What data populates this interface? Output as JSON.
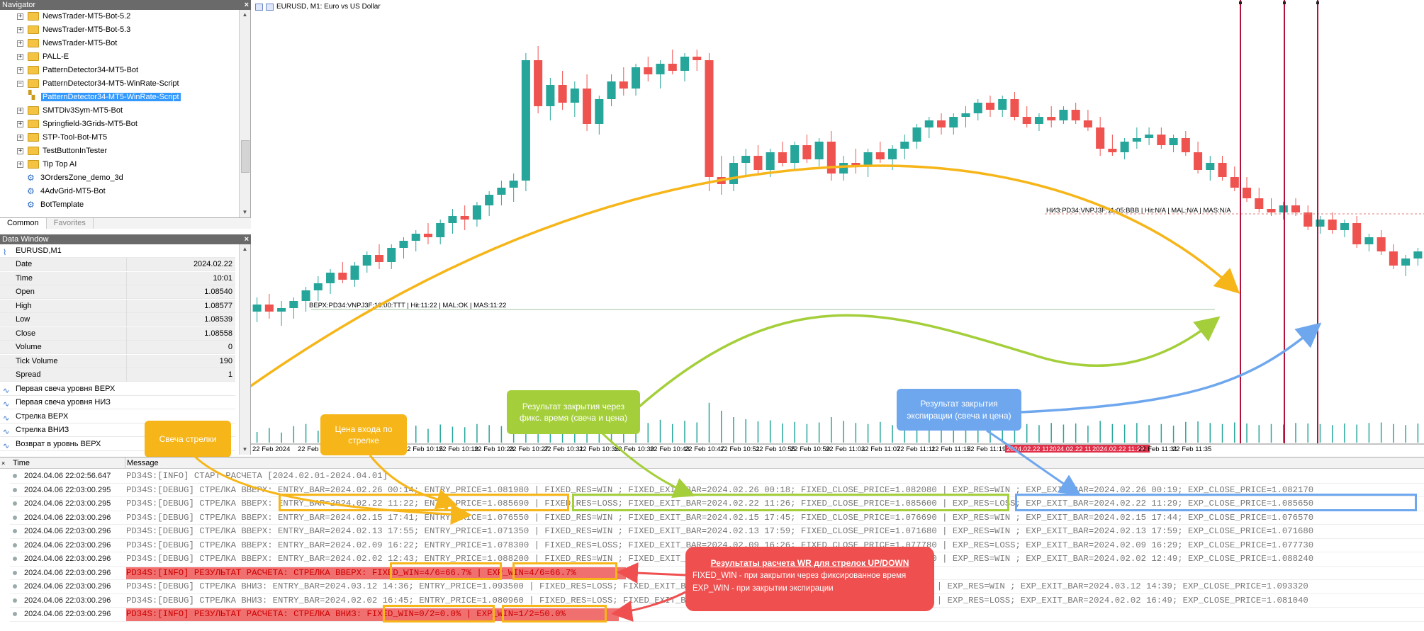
{
  "navigator": {
    "title": "Navigator",
    "items": [
      {
        "label": "NewsTrader-MT5-Bot-5.2",
        "kind": "folder"
      },
      {
        "label": "NewsTrader-MT5-Bot-5.3",
        "kind": "folder"
      },
      {
        "label": "NewsTrader-MT5-Bot",
        "kind": "folder"
      },
      {
        "label": "PALL-E",
        "kind": "folder"
      },
      {
        "label": "PatternDetector34-MT5-Bot",
        "kind": "folder"
      },
      {
        "label": "PatternDetector34-MT5-WinRate-Script",
        "kind": "folder-open"
      },
      {
        "label": "PatternDetector34-MT5-WinRate-Script",
        "kind": "selected"
      },
      {
        "label": "SMTDiv3Sym-MT5-Bot",
        "kind": "folder"
      },
      {
        "label": "Springfield-3Grids-MT5-Bot",
        "kind": "folder"
      },
      {
        "label": "STP-Tool-Bot-MT5",
        "kind": "folder"
      },
      {
        "label": "TestButtonInTester",
        "kind": "folder"
      },
      {
        "label": "Tip Top AI",
        "kind": "folder"
      },
      {
        "label": "3OrdersZone_demo_3d",
        "kind": "script"
      },
      {
        "label": "4AdvGrid-MT5-Bot",
        "kind": "script"
      },
      {
        "label": "BotTemplate",
        "kind": "script"
      }
    ],
    "tabs": [
      "Common",
      "Favorites"
    ]
  },
  "data_window": {
    "title": "Data Window",
    "symbol": "EURUSD,M1",
    "rows": [
      {
        "k": "Date",
        "v": "2024.02.22"
      },
      {
        "k": "Time",
        "v": "10:01"
      },
      {
        "k": "Open",
        "v": "1.08540"
      },
      {
        "k": "High",
        "v": "1.08577"
      },
      {
        "k": "Low",
        "v": "1.08539"
      },
      {
        "k": "Close",
        "v": "1.08558"
      },
      {
        "k": "Volume",
        "v": "0"
      },
      {
        "k": "Tick Volume",
        "v": "190"
      },
      {
        "k": "Spread",
        "v": "1"
      }
    ],
    "indicators": [
      "Первая свеча уровня ВЕРХ",
      "Первая свеча уровня НИЗ",
      "Стрелка ВЕРХ",
      "Стрелка ВНИЗ",
      "Возврат в уровнь ВЕРХ"
    ]
  },
  "chart": {
    "title": "EURUSD, M1:  Euro vs US Dollar",
    "upper_label": "ВЕРХ:PD34:VNPJ3F:10:00:TTT | Hit:11:22 | MAL:OK | MAS:11:22",
    "lower_label": "НИЗ:PD34:VNPJ3F:11:05:BBB | Hit:N/A | MAL:N/A | MAS:N/A",
    "time_labels": [
      "22 Feb 2024",
      "22 Feb 10:03",
      "22 Feb 10:07",
      "22 Feb 10:11",
      "22 Feb 10:15",
      "22 Feb 10:19",
      "22 Feb 10:23",
      "22 Feb 10:27",
      "22 Feb 10:31",
      "22 Feb 10:35",
      "22 Feb 10:39",
      "22 Feb 10:43",
      "22 Feb 10:47",
      "22 Feb 10:51",
      "22 Feb 10:55",
      "22 Feb 10:59",
      "22 Feb 11:03",
      "22 Feb 11:07",
      "22 Feb 11:11",
      "22 Feb 11:15",
      "22 Feb 11:19",
      "2024.02.22 11:22",
      "2024.02.22 11:26",
      "2024.02.22 11:29",
      "22 Feb 11:31",
      "22 Feb 11:35"
    ],
    "colors": {
      "bull": "#26a69a",
      "bear": "#ef5350",
      "vline": "#b0123a"
    },
    "candles": [
      [
        1.0822,
        1.0826,
        1.0819,
        1.0824
      ],
      [
        1.0824,
        1.0827,
        1.082,
        1.0822
      ],
      [
        1.0822,
        1.0825,
        1.0818,
        1.0823
      ],
      [
        1.0823,
        1.0826,
        1.082,
        1.0825
      ],
      [
        1.0825,
        1.0829,
        1.0822,
        1.0828
      ],
      [
        1.0828,
        1.0832,
        1.0825,
        1.083
      ],
      [
        1.083,
        1.0834,
        1.0827,
        1.0833
      ],
      [
        1.0833,
        1.0836,
        1.083,
        1.0831
      ],
      [
        1.0831,
        1.0836,
        1.0829,
        1.0835
      ],
      [
        1.0835,
        1.0839,
        1.0833,
        1.0838
      ],
      [
        1.0838,
        1.0841,
        1.0834,
        1.0836
      ],
      [
        1.0836,
        1.0841,
        1.0834,
        1.084
      ],
      [
        1.084,
        1.0843,
        1.0837,
        1.0842
      ],
      [
        1.0842,
        1.0845,
        1.0839,
        1.0844
      ],
      [
        1.0844,
        1.0847,
        1.0841,
        1.0843
      ],
      [
        1.0843,
        1.0848,
        1.0841,
        1.0847
      ],
      [
        1.0847,
        1.0851,
        1.0844,
        1.0849
      ],
      [
        1.0849,
        1.0852,
        1.0845,
        1.0848
      ],
      [
        1.0848,
        1.0853,
        1.0846,
        1.0852
      ],
      [
        1.0852,
        1.0856,
        1.0849,
        1.0855
      ],
      [
        1.0855,
        1.0859,
        1.0852,
        1.0857
      ],
      [
        1.0857,
        1.0861,
        1.0853,
        1.0859
      ],
      [
        1.0859,
        1.0895,
        1.0856,
        1.0893
      ],
      [
        1.0893,
        1.0897,
        1.0878,
        1.088
      ],
      [
        1.088,
        1.0888,
        1.0876,
        1.0886
      ],
      [
        1.0886,
        1.089,
        1.0879,
        1.0881
      ],
      [
        1.0881,
        1.0887,
        1.0877,
        1.0885
      ],
      [
        1.0885,
        1.0889,
        1.0873,
        1.0875
      ],
      [
        1.0875,
        1.0883,
        1.0872,
        1.0882
      ],
      [
        1.0882,
        1.0889,
        1.088,
        1.0887
      ],
      [
        1.0887,
        1.0891,
        1.0883,
        1.0885
      ],
      [
        1.0885,
        1.0892,
        1.0883,
        1.0891
      ],
      [
        1.0891,
        1.0894,
        1.0887,
        1.0889
      ],
      [
        1.0889,
        1.0893,
        1.0885,
        1.0892
      ],
      [
        1.0892,
        1.0896,
        1.0889,
        1.089
      ],
      [
        1.089,
        1.0895,
        1.0887,
        1.0894
      ],
      [
        1.0894,
        1.0896,
        1.089,
        1.0893
      ],
      [
        1.0893,
        1.0895,
        1.0856,
        1.086
      ],
      [
        1.086,
        1.0866,
        1.0855,
        1.0858
      ],
      [
        1.0858,
        1.0866,
        1.0856,
        1.0864
      ],
      [
        1.0864,
        1.0868,
        1.086,
        1.0866
      ],
      [
        1.0866,
        1.0869,
        1.0861,
        1.0862
      ],
      [
        1.0862,
        1.0868,
        1.086,
        1.0867
      ],
      [
        1.0867,
        1.087,
        1.0863,
        1.0864
      ],
      [
        1.0864,
        1.087,
        1.0862,
        1.0869
      ],
      [
        1.0869,
        1.0872,
        1.0864,
        1.0865
      ],
      [
        1.0865,
        1.0871,
        1.0863,
        1.087
      ],
      [
        1.087,
        1.0873,
        1.0859,
        1.0861
      ],
      [
        1.0861,
        1.0866,
        1.0859,
        1.0864
      ],
      [
        1.0864,
        1.0868,
        1.0861,
        1.0863
      ],
      [
        1.0863,
        1.0868,
        1.086,
        1.0867
      ],
      [
        1.0867,
        1.087,
        1.0864,
        1.0865
      ],
      [
        1.0865,
        1.0869,
        1.0862,
        1.0868
      ],
      [
        1.0868,
        1.0872,
        1.0865,
        1.087
      ],
      [
        1.087,
        1.0875,
        1.0868,
        1.0874
      ],
      [
        1.0874,
        1.0877,
        1.0871,
        1.0876
      ],
      [
        1.0876,
        1.0878,
        1.0872,
        1.0874
      ],
      [
        1.0874,
        1.0878,
        1.0872,
        1.0877
      ],
      [
        1.0877,
        1.088,
        1.0874,
        1.0878
      ],
      [
        1.0878,
        1.0882,
        1.0876,
        1.0881
      ],
      [
        1.0881,
        1.0883,
        1.0877,
        1.0879
      ],
      [
        1.0879,
        1.0883,
        1.0877,
        1.0882
      ],
      [
        1.0882,
        1.0884,
        1.0876,
        1.0877
      ],
      [
        1.0877,
        1.088,
        1.0874,
        1.0875
      ],
      [
        1.0875,
        1.0878,
        1.0873,
        1.0877
      ],
      [
        1.0877,
        1.088,
        1.0874,
        1.0876
      ],
      [
        1.0876,
        1.088,
        1.0875,
        1.0879
      ],
      [
        1.0879,
        1.0881,
        1.0875,
        1.0876
      ],
      [
        1.0876,
        1.0879,
        1.0873,
        1.0874
      ],
      [
        1.0874,
        1.0877,
        1.0866,
        1.0868
      ],
      [
        1.0868,
        1.0872,
        1.0866,
        1.0867
      ],
      [
        1.0867,
        1.0871,
        1.0865,
        1.087
      ],
      [
        1.087,
        1.0874,
        1.0868,
        1.0871
      ],
      [
        1.0871,
        1.0874,
        1.0869,
        1.0872
      ],
      [
        1.0872,
        1.0874,
        1.0868,
        1.0869
      ],
      [
        1.0869,
        1.0872,
        1.0867,
        1.0871
      ],
      [
        1.0871,
        1.0873,
        1.0866,
        1.0867
      ],
      [
        1.0867,
        1.087,
        1.0861,
        1.0862
      ],
      [
        1.0862,
        1.0866,
        1.0859,
        1.0864
      ],
      [
        1.0864,
        1.0866,
        1.0859,
        1.086
      ],
      [
        1.086,
        1.0863,
        1.0856,
        1.0857
      ],
      [
        1.0857,
        1.086,
        1.0853,
        1.0854
      ],
      [
        1.0854,
        1.0857,
        1.085,
        1.0851
      ],
      [
        1.0851,
        1.0854,
        1.0849,
        1.085
      ],
      [
        1.085,
        1.0853,
        1.0848,
        1.0852
      ],
      [
        1.0852,
        1.0854,
        1.0849,
        1.085
      ],
      [
        1.085,
        1.0852,
        1.0845,
        1.0846
      ],
      [
        1.0846,
        1.0849,
        1.0844,
        1.0848
      ],
      [
        1.0848,
        1.085,
        1.0844,
        1.0845
      ],
      [
        1.0845,
        1.0848,
        1.0843,
        1.0847
      ],
      [
        1.0847,
        1.0849,
        1.084,
        1.0841
      ],
      [
        1.0841,
        1.0844,
        1.0839,
        1.0843
      ],
      [
        1.0843,
        1.0845,
        1.0838,
        1.0839
      ],
      [
        1.0839,
        1.0841,
        1.0834,
        1.0835
      ],
      [
        1.0835,
        1.0838,
        1.0832,
        1.0837
      ],
      [
        1.0837,
        1.084,
        1.0835,
        1.0839
      ]
    ],
    "price_range": [
      1.081,
      1.0908
    ],
    "volumes": [
      40,
      55,
      38,
      62,
      70,
      45,
      58,
      66,
      50,
      72,
      48,
      60,
      55,
      64,
      52,
      68,
      60,
      58,
      70,
      66,
      62,
      75,
      160,
      120,
      95,
      88,
      76,
      110,
      92,
      84,
      78,
      90,
      74,
      86,
      70,
      82,
      76,
      150,
      120,
      96,
      88,
      80,
      84,
      72,
      78,
      70,
      76,
      96,
      82,
      74,
      70,
      78,
      66,
      72,
      64,
      80,
      70,
      66,
      74,
      68,
      62,
      72,
      76,
      70,
      66,
      74,
      68,
      72,
      64,
      82,
      70,
      68,
      74,
      66,
      70,
      64,
      78,
      80,
      74,
      70,
      76,
      72,
      66,
      70,
      68,
      74,
      72,
      70,
      66,
      72,
      68,
      74,
      76,
      70,
      66,
      72
    ],
    "callout_arrow": "Свеча стрелки",
    "callout_entry": "Цена входа по стрелке",
    "callout_fixed": "Результат закрытия через фикс. время (свеча и цена)",
    "callout_exp": "Результат закрытия экспирации (свеча и цена)"
  },
  "journal": {
    "col_time": "Time",
    "col_message": "Message",
    "rows": [
      {
        "t": "2024.04.06 22:02:56.647",
        "m": "PD34S:[INFO] СТАРТ РАСЧЕТА [2024.02.01-2024.04.01]",
        "hl": false
      },
      {
        "t": "2024.04.06 22:03:00.295",
        "m": "PD34S:[DEBUG] СТРЕЛКА ВВЕРХ: ENTRY_BAR=2024.02.26 00:14; ENTRY_PRICE=1.081980 | FIXED_RES=WIN ; FIXED_EXIT_BAR=2024.02.26 00:18; FIXED_CLOSE_PRICE=1.082080 | EXP_RES=WIN ; EXP_EXIT_BAR=2024.02.26 00:19; EXP_CLOSE_PRICE=1.082170",
        "hl": false
      },
      {
        "t": "2024.04.06 22:03:00.295",
        "m": "PD34S:[DEBUG] СТРЕЛКА ВВЕРХ: ENTRY_BAR=2024.02.22 11:22; ENTRY_PRICE=1.085690 | FIXED_RES=LOSS; FIXED_EXIT_BAR=2024.02.22 11:26; FIXED_CLOSE_PRICE=1.085600 | EXP_RES=LOSS; EXP_EXIT_BAR=2024.02.22 11:29; EXP_CLOSE_PRICE=1.085650",
        "hl": false
      },
      {
        "t": "2024.04.06 22:03:00.296",
        "m": "PD34S:[DEBUG] СТРЕЛКА ВВЕРХ: ENTRY_BAR=2024.02.15 17:41; ENTRY_PRICE=1.076550 | FIXED_RES=WIN ; FIXED_EXIT_BAR=2024.02.15 17:45; FIXED_CLOSE_PRICE=1.076690 | EXP_RES=WIN ; EXP_EXIT_BAR=2024.02.15 17:44; EXP_CLOSE_PRICE=1.076570",
        "hl": false
      },
      {
        "t": "2024.04.06 22:03:00.296",
        "m": "PD34S:[DEBUG] СТРЕЛКА ВВЕРХ: ENTRY_BAR=2024.02.13 17:55; ENTRY_PRICE=1.071350 | FIXED_RES=WIN ; FIXED_EXIT_BAR=2024.02.13 17:59; FIXED_CLOSE_PRICE=1.071680 | EXP_RES=WIN ; EXP_EXIT_BAR=2024.02.13 17:59; EXP_CLOSE_PRICE=1.071680",
        "hl": false
      },
      {
        "t": "2024.04.06 22:03:00.296",
        "m": "PD34S:[DEBUG] СТРЕЛКА ВВЕРХ: ENTRY_BAR=2024.02.09 16:22; ENTRY_PRICE=1.078300 | FIXED_RES=LOSS; FIXED_EXIT_BAR=2024.02.09 16:26; FIXED_CLOSE_PRICE=1.077780 | EXP_RES=LOSS; EXP_EXIT_BAR=2024.02.09 16:29; EXP_CLOSE_PRICE=1.077730",
        "hl": false
      },
      {
        "t": "2024.04.06 22:03:00.296",
        "m": "PD34S:[DEBUG] СТРЕЛКА ВВЕРХ: ENTRY_BAR=2024.02.02 12:43; ENTRY_PRICE=1.088200 | FIXED_RES=WIN ; FIXED_EXIT_BAR=2024.02.02 12:47; FIXED_CLOSE_PRICE=1.088230 | EXP_RES=WIN ; EXP_EXIT_BAR=2024.02.02 12:49; EXP_CLOSE_PRICE=1.088240",
        "hl": false
      },
      {
        "t": "2024.04.06 22:03:00.296",
        "m": "PD34S:[INFO] РЕЗУЛЬТАТ РАСЧЕТА: СТРЕЛКА ВВЕРХ: FIXED_WIN=4/6=66.7% | EXP_WIN=4/6=66.7%",
        "hl": true
      },
      {
        "t": "2024.04.06 22:03:00.296",
        "m": "PD34S:[DEBUG] СТРЕЛКА ВНИЗ: ENTRY_BAR=2024.03.12 14:36; ENTRY_PRICE=1.093500 | FIXED_RES=LOSS; FIXED_EXIT_BAR=2024.03.12 14:40; FIXED_CLOSE_PRICE=1.094030 | EXP_RES=WIN ; EXP_EXIT_BAR=2024.03.12 14:39; EXP_CLOSE_PRICE=1.093320",
        "hl": false
      },
      {
        "t": "2024.04.06 22:03:00.296",
        "m": "PD34S:[DEBUG] СТРЕЛКА ВНИЗ: ENTRY_BAR=2024.02.02 16:45; ENTRY_PRICE=1.080960 | FIXED_RES=LOSS; FIXED_EXIT_BAR=2024.02.02 16:49; FIXED_CLOSE_PRICE=1.081040 | EXP_RES=LOSS; EXP_EXIT_BAR=2024.02.02 16:49; EXP_CLOSE_PRICE=1.081040",
        "hl": false
      },
      {
        "t": "2024.04.06 22:03:00.296",
        "m": "PD34S:[INFO] РЕЗУЛЬТАТ РАСЧЕТА: СТРЕЛКА ВНИЗ: FIXED_WIN=0/2=0.0% | EXP_WIN=1/2=50.0%",
        "hl": true
      }
    ],
    "panel_title": "Результаты расчета WR для стрелок UP/DOWN",
    "panel_line1": "FIXED_WIN - при закрытии через фиксированное время",
    "panel_line2": "EXP_WIN - при закрытии экспирации"
  }
}
